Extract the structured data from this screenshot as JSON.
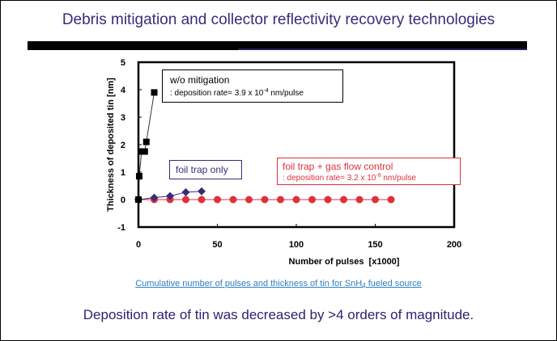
{
  "slide": {
    "title": "Debris mitigation and collector reflectivity recovery technologies",
    "caption": {
      "pre": "Cumulative number of pulses and thickness of tin for SnH",
      "sub": "4",
      "post": " fueled source"
    },
    "conclusion": "Deposition rate of tin was decreased by >4 orders of magnitude."
  },
  "colors": {
    "title": "#3b2a7a",
    "wo_mitigation": "#000000",
    "foil_trap_only": "#3b2a7a",
    "foil_trap_gas_flow": "#e0303a",
    "caption": "#2f7fc0"
  },
  "annotations": {
    "wo_mitigation": {
      "line1": "w/o mitigation",
      "line2_pre": ": deposition rate= 3.9 x 10",
      "line2_exp": "-4",
      "line2_post": " nm/pulse"
    },
    "foil_trap_only": {
      "line1": "foil trap only"
    },
    "foil_trap_gas_flow": {
      "line1": "foil trap + gas flow control",
      "line2_pre": ": deposition rate= 3.2 x 10",
      "line2_exp": "-8",
      "line2_post": " nm/pulse"
    }
  },
  "chart_data": {
    "type": "scatter",
    "title": "",
    "xlabel": "Number of pulses  [x1000]",
    "ylabel": "Thickness of deposited tin [nm]",
    "xlim": [
      0,
      200
    ],
    "ylim": [
      -1,
      5
    ],
    "xticks": [
      0,
      50,
      100,
      150,
      200
    ],
    "yticks": [
      -1,
      0,
      1,
      2,
      3,
      4,
      5
    ],
    "xtick_labels": [
      "0",
      "50",
      "100",
      "150",
      "200"
    ],
    "ytick_labels": [
      "-1",
      "0",
      "1",
      "2",
      "3",
      "4",
      "5"
    ],
    "grid": false,
    "series": [
      {
        "name": "w/o mitigation",
        "marker": "square",
        "color": "#000000",
        "x": [
          0,
          0.5,
          2,
          4,
          5,
          10
        ],
        "y": [
          0,
          0.85,
          1.75,
          1.75,
          2.1,
          3.9
        ]
      },
      {
        "name": "foil trap only",
        "marker": "diamond",
        "color": "#3b2a7a",
        "x": [
          0,
          10,
          20,
          30,
          40
        ],
        "y": [
          0,
          0.07,
          0.13,
          0.27,
          0.3
        ]
      },
      {
        "name": "foil trap + gas flow control",
        "marker": "circle",
        "color": "#e0303a",
        "x": [
          0,
          10,
          20,
          30,
          40,
          50,
          60,
          70,
          80,
          90,
          100,
          110,
          120,
          130,
          140,
          150,
          160
        ],
        "y": [
          0,
          0,
          0,
          0,
          0,
          0,
          0,
          0,
          0,
          0,
          0,
          0,
          0,
          0,
          0,
          0,
          0
        ]
      }
    ]
  }
}
